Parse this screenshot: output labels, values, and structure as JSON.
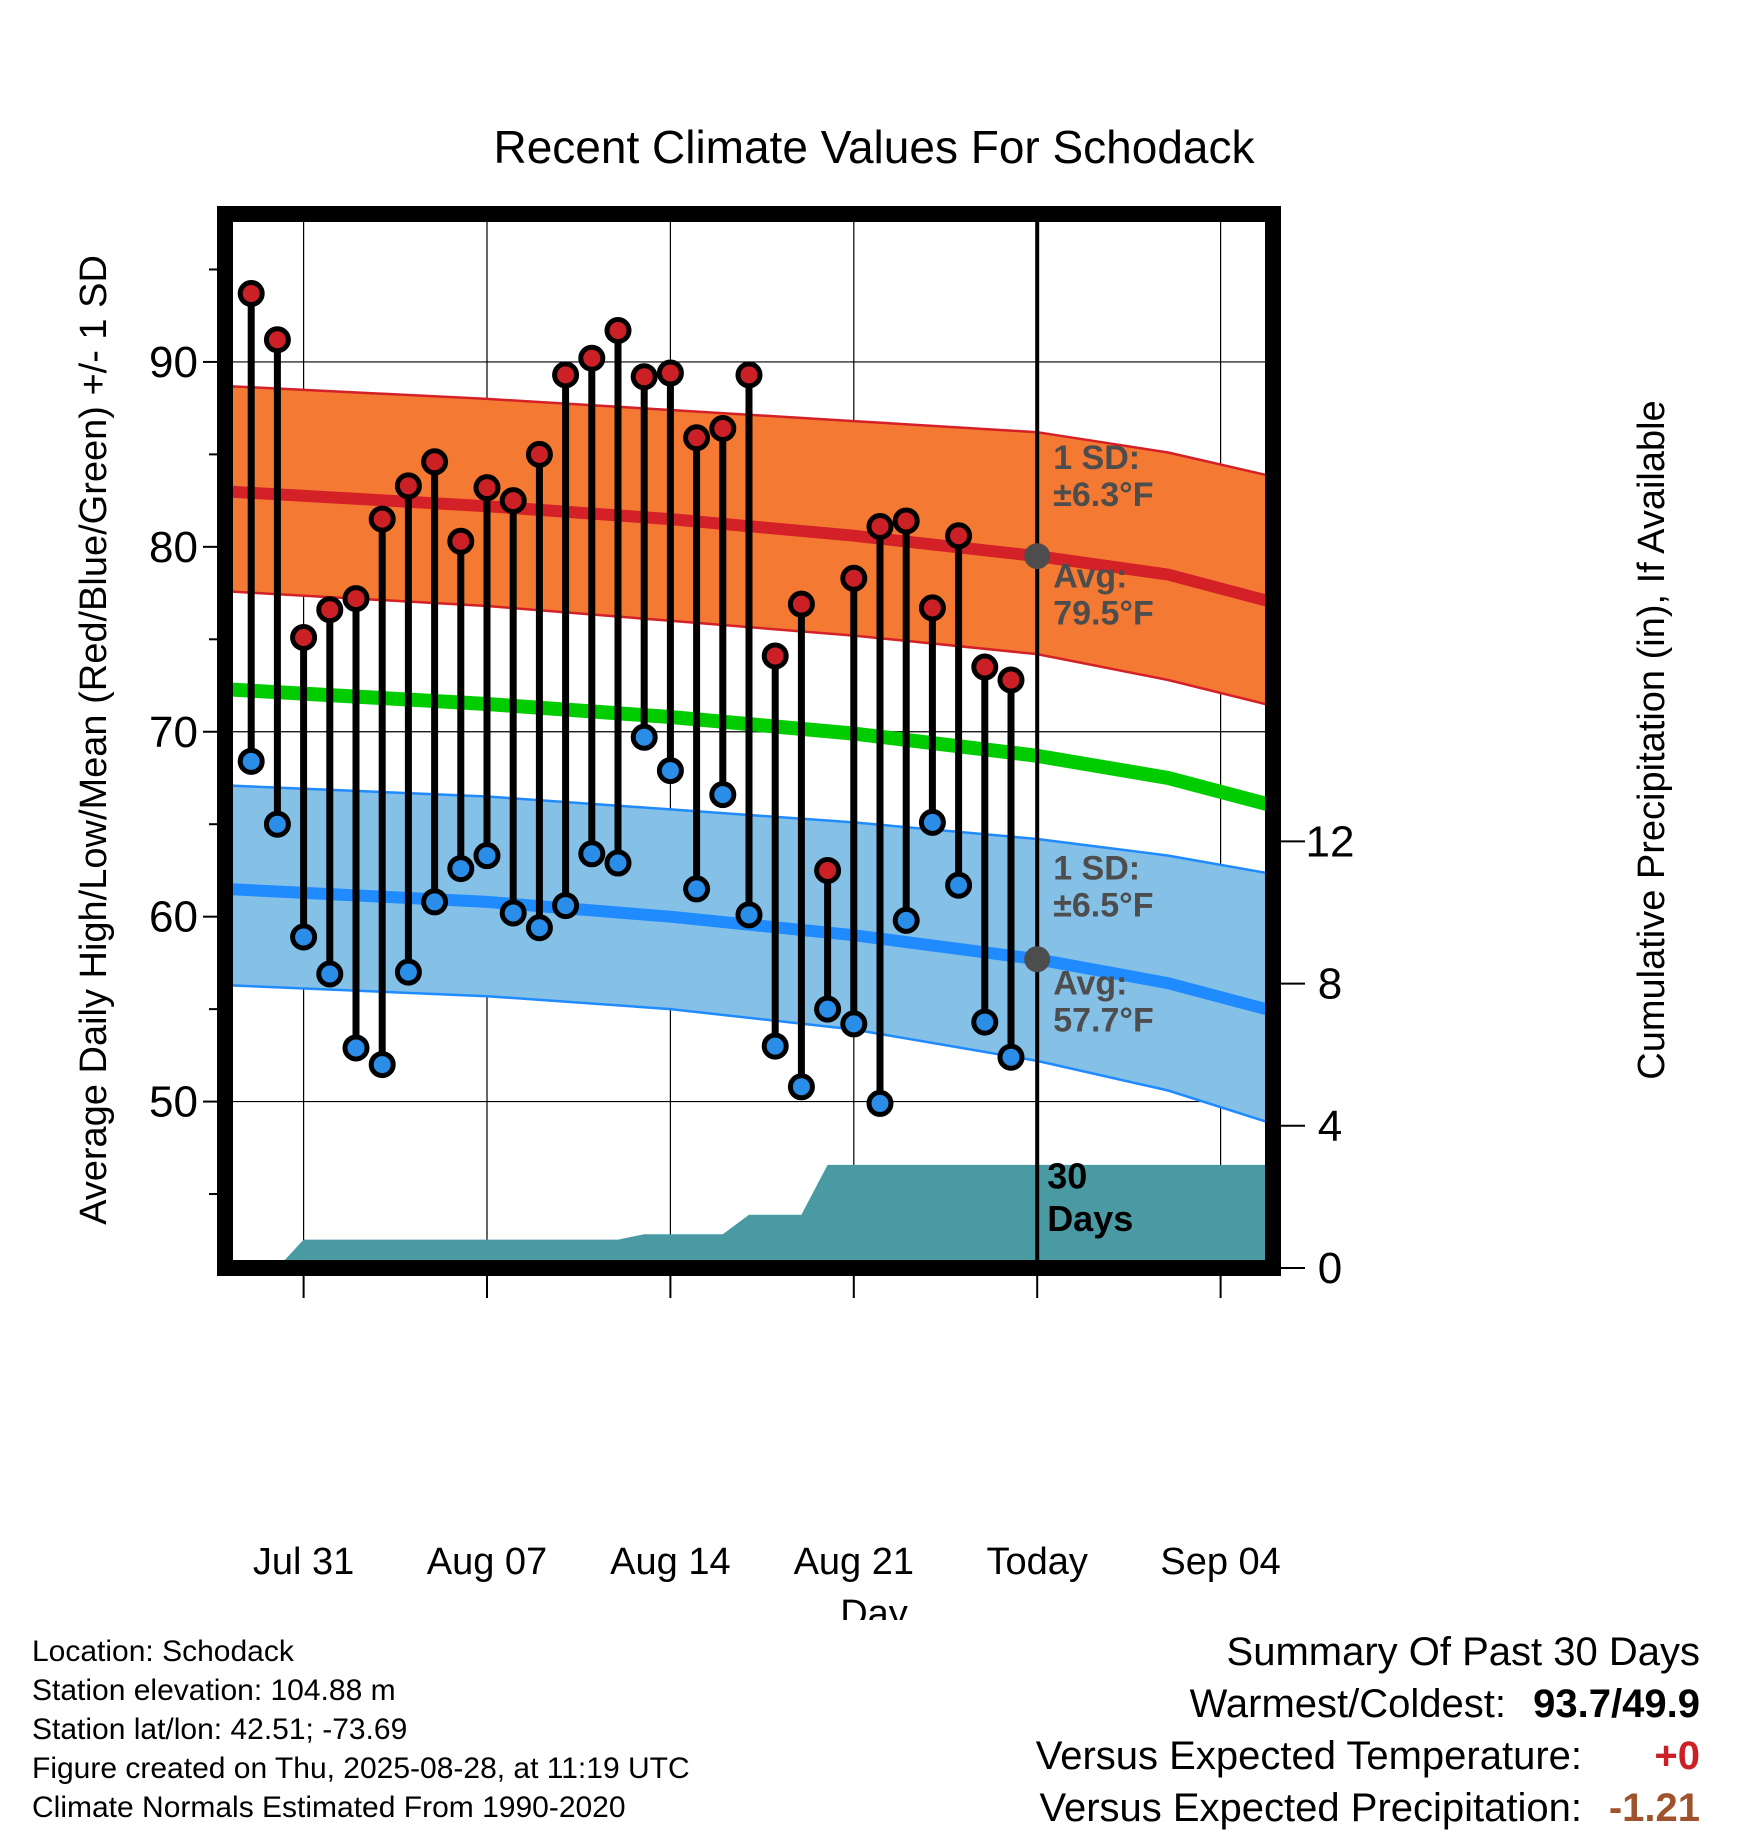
{
  "chart_data": {
    "type": "line",
    "title": "Recent Climate Values For Schodack",
    "xlabel": "Day",
    "ylabel_left": "Average Daily High/Low/Mean (Red/Blue/Green) +/- 1 SD",
    "ylabel_right": "Cumulative Precipitation (in), If Available",
    "xlim": [
      "Jul 28",
      "Sep 06"
    ],
    "ylim_left": [
      41,
      98
    ],
    "ylim_right": [
      0,
      29.65
    ],
    "x_tick_labels": [
      {
        "date": "Jul 31",
        "label": "Jul 31"
      },
      {
        "date": "Aug 07",
        "label": "Aug 07"
      },
      {
        "date": "Aug 14",
        "label": "Aug 14"
      },
      {
        "date": "Aug 21",
        "label": "Aug 21"
      },
      {
        "date": "Aug 28",
        "label": "Today"
      },
      {
        "date": "Sep 04",
        "label": "Sep 04"
      }
    ],
    "y_ticks_left": [
      50,
      60,
      70,
      80,
      90
    ],
    "y_ticks_right": [
      0,
      4,
      8,
      12
    ],
    "grid": true,
    "today_marker": {
      "date": "Aug 28",
      "label": "30 Days"
    },
    "normal_high": {
      "dates": [
        "Jul 28",
        "Aug 07",
        "Aug 14",
        "Aug 21",
        "Aug 28",
        "Sep 02",
        "Sep 06"
      ],
      "avg": [
        83.0,
        82.2,
        81.5,
        80.6,
        79.5,
        78.5,
        77.0
      ],
      "upper": [
        88.7,
        88.0,
        87.4,
        86.8,
        86.2,
        85.1,
        83.8
      ],
      "lower": [
        77.6,
        76.8,
        76.0,
        75.2,
        74.2,
        72.8,
        71.4
      ],
      "sd_label": "1 SD:",
      "sd_value": "±6.3°F",
      "avg_label": "Avg:",
      "avg_value": "79.5°F",
      "today_avg": 79.5
    },
    "normal_low": {
      "dates": [
        "Jul 28",
        "Aug 07",
        "Aug 14",
        "Aug 21",
        "Aug 28",
        "Sep 02",
        "Sep 06"
      ],
      "avg": [
        61.5,
        60.8,
        60.0,
        59.0,
        57.7,
        56.4,
        54.9
      ],
      "upper": [
        67.1,
        66.5,
        65.8,
        65.1,
        64.2,
        63.3,
        62.3
      ],
      "lower": [
        56.3,
        55.7,
        55.0,
        53.9,
        52.2,
        50.6,
        48.8
      ],
      "sd_label": "1 SD:",
      "sd_value": "±6.5°F",
      "avg_label": "Avg:",
      "avg_value": "57.7°F",
      "today_avg": 57.7
    },
    "normal_mean": {
      "dates": [
        "Jul 28",
        "Aug 07",
        "Aug 14",
        "Aug 21",
        "Aug 28",
        "Sep 02",
        "Sep 06"
      ],
      "values": [
        72.3,
        71.5,
        70.8,
        69.9,
        68.7,
        67.5,
        66.0
      ]
    },
    "daily": [
      {
        "date": "Jul 29",
        "high": 93.7,
        "low": 68.4
      },
      {
        "date": "Jul 30",
        "high": 91.2,
        "low": 65.0
      },
      {
        "date": "Jul 31",
        "high": 75.1,
        "low": 58.9
      },
      {
        "date": "Aug 01",
        "high": 76.6,
        "low": 56.9
      },
      {
        "date": "Aug 02",
        "high": 77.2,
        "low": 52.9
      },
      {
        "date": "Aug 03",
        "high": 81.5,
        "low": 52.0
      },
      {
        "date": "Aug 04",
        "high": 83.3,
        "low": 57.0
      },
      {
        "date": "Aug 05",
        "high": 84.6,
        "low": 60.8
      },
      {
        "date": "Aug 06",
        "high": 80.3,
        "low": 62.6
      },
      {
        "date": "Aug 07",
        "high": 83.2,
        "low": 63.3
      },
      {
        "date": "Aug 08",
        "high": 82.5,
        "low": 60.2
      },
      {
        "date": "Aug 09",
        "high": 85.0,
        "low": 59.4
      },
      {
        "date": "Aug 10",
        "high": 89.3,
        "low": 60.6
      },
      {
        "date": "Aug 11",
        "high": 90.2,
        "low": 63.4
      },
      {
        "date": "Aug 12",
        "high": 91.7,
        "low": 62.9
      },
      {
        "date": "Aug 13",
        "high": 89.2,
        "low": 69.7
      },
      {
        "date": "Aug 14",
        "high": 89.4,
        "low": 67.9
      },
      {
        "date": "Aug 15",
        "high": 85.9,
        "low": 61.5
      },
      {
        "date": "Aug 16",
        "high": 86.4,
        "low": 66.6
      },
      {
        "date": "Aug 17",
        "high": 89.3,
        "low": 60.1
      },
      {
        "date": "Aug 18",
        "high": 74.1,
        "low": 53.0
      },
      {
        "date": "Aug 19",
        "high": 76.9,
        "low": 50.8
      },
      {
        "date": "Aug 20",
        "high": 62.5,
        "low": 55.0
      },
      {
        "date": "Aug 21",
        "high": 78.3,
        "low": 54.2
      },
      {
        "date": "Aug 22",
        "high": 81.1,
        "low": 49.9
      },
      {
        "date": "Aug 23",
        "high": 81.4,
        "low": 59.8
      },
      {
        "date": "Aug 24",
        "high": 76.7,
        "low": 65.1
      },
      {
        "date": "Aug 25",
        "high": 80.6,
        "low": 61.7
      },
      {
        "date": "Aug 26",
        "high": 73.5,
        "low": 54.3
      },
      {
        "date": "Aug 27",
        "high": 72.8,
        "low": 52.4
      }
    ],
    "precip_cumulative": [
      {
        "date": "Jul 29",
        "value": 0
      },
      {
        "date": "Jul 30",
        "value": 0
      },
      {
        "date": "Jul 31",
        "value": 0.8
      },
      {
        "date": "Aug 12",
        "value": 0.8
      },
      {
        "date": "Aug 13",
        "value": 0.95
      },
      {
        "date": "Aug 16",
        "value": 0.95
      },
      {
        "date": "Aug 17",
        "value": 1.5
      },
      {
        "date": "Aug 19",
        "value": 1.5
      },
      {
        "date": "Aug 20",
        "value": 2.9
      },
      {
        "date": "Sep 06",
        "value": 2.9
      }
    ],
    "colors": {
      "high_band": "#f47a33",
      "high_line": "#d42027",
      "low_band": "#85c0e6",
      "low_line": "#1f8bff",
      "mean_line": "#00cc00",
      "precip": "#4a9aa3",
      "high_marker": "#cc2027",
      "low_marker": "#2a8de8",
      "label_gray": "#4d4d4d"
    }
  },
  "footer": {
    "location": "Location: Schodack",
    "elevation": "Station elevation: 104.88 m",
    "latlon": "Station lat/lon: 42.51; -73.69",
    "created": "Figure created on Thu, 2025-08-28, at 11:19 UTC",
    "normals": "Climate Normals Estimated From 1990-2020"
  },
  "summary": {
    "title": "Summary Of Past 30 Days",
    "warmest_label": "Warmest/Coldest:",
    "warmest_value": "93.7/49.9",
    "temp_label": "Versus Expected Temperature:",
    "temp_value": "+0",
    "temp_color": "#cc2027",
    "precip_label": "Versus Expected Precipitation:",
    "precip_value": "-1.21",
    "precip_color": "#a0522d"
  }
}
